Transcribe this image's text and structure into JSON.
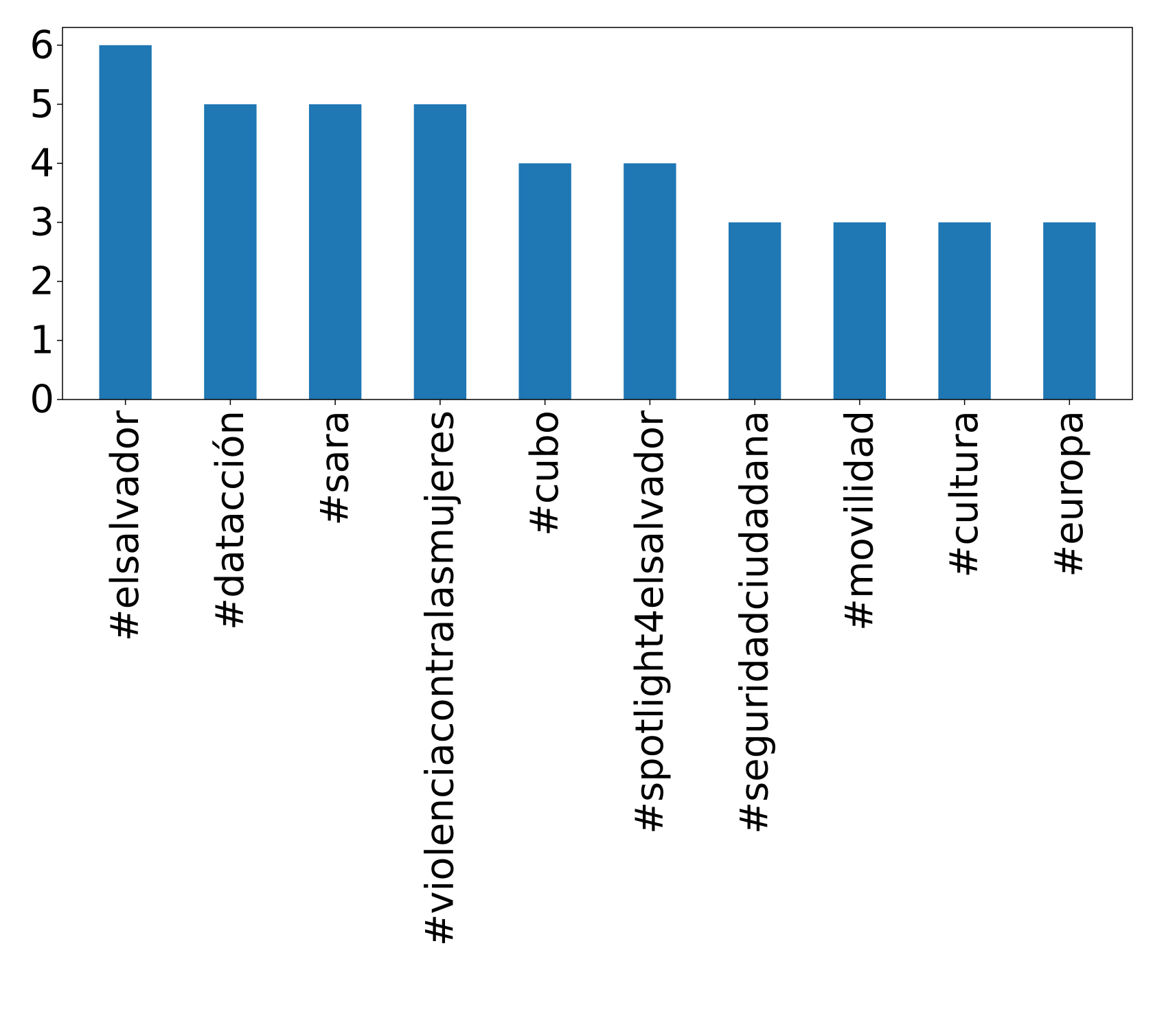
{
  "chart_data": {
    "type": "bar",
    "title": "",
    "xlabel": "",
    "ylabel": "",
    "categories": [
      "#elsalvador",
      "#datacción",
      "#sara",
      "#violenciacontralasmujeres",
      "#cubo",
      "#spotlight4elsalvador",
      "#seguridadciudadana",
      "#movilidad",
      "#cultura",
      "#europa"
    ],
    "values": [
      6,
      5,
      5,
      5,
      4,
      4,
      3,
      3,
      3,
      3
    ],
    "ylim": [
      0,
      6.3
    ],
    "yticks": [
      "0",
      "1",
      "2",
      "3",
      "4",
      "5",
      "6"
    ],
    "grid": false,
    "legend": "none",
    "colors": {
      "bar": "#1f77b4",
      "axis": "#000000",
      "background": "#ffffff"
    }
  }
}
